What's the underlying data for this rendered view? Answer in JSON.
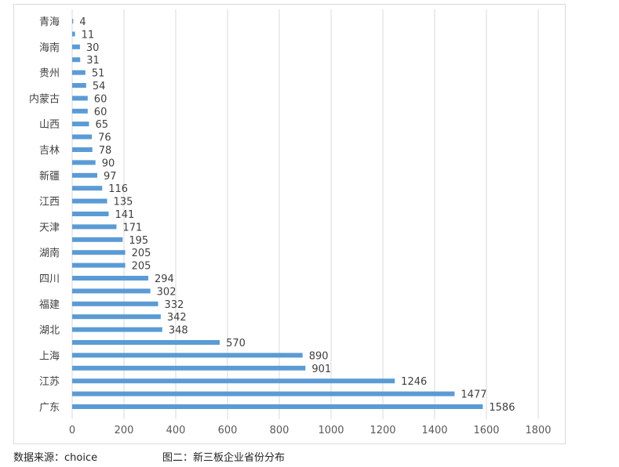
{
  "chart_data": {
    "type": "bar",
    "orientation": "horizontal",
    "categories": [
      "青海",
      "",
      "海南",
      "",
      "贵州",
      "",
      "内蒙古",
      "",
      "山西",
      "",
      "吉林",
      "",
      "新疆",
      "",
      "江西",
      "",
      "天津",
      "",
      "湖南",
      "",
      "四川",
      "",
      "福建",
      "",
      "湖北",
      "",
      "上海",
      "",
      "江苏",
      "",
      "广东"
    ],
    "values": [
      4,
      11,
      30,
      31,
      51,
      54,
      60,
      60,
      65,
      76,
      78,
      90,
      97,
      116,
      135,
      141,
      171,
      195,
      205,
      205,
      294,
      302,
      332,
      342,
      348,
      570,
      890,
      901,
      1246,
      1477,
      1586
    ],
    "xlim": [
      0,
      1800
    ],
    "xticks": [
      0,
      200,
      400,
      600,
      800,
      1000,
      1200,
      1400,
      1600,
      1800
    ],
    "grid": true,
    "bar_color": "#5b9bd5"
  },
  "caption": {
    "source": "数据来源：choice",
    "title": "图二：新三板企业省份分布"
  }
}
